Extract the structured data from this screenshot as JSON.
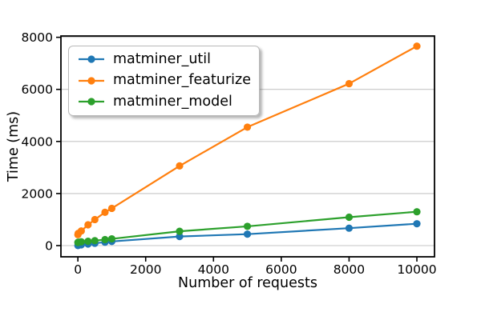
{
  "figure": {
    "background": "#ffffff"
  },
  "chart_data": {
    "type": "line",
    "title": "",
    "xlabel": "Number of requests",
    "ylabel": "Time (ms)",
    "x": [
      1,
      10,
      100,
      300,
      500,
      800,
      1000,
      3000,
      5000,
      8000,
      10000
    ],
    "series": [
      {
        "name": "matminer_util",
        "color": "#1f77b4",
        "values": [
          5,
          10,
          30,
          60,
          90,
          130,
          160,
          350,
          440,
          670,
          840
        ]
      },
      {
        "name": "matminer_featurize",
        "color": "#ff7f0e",
        "values": [
          420,
          470,
          560,
          800,
          1000,
          1280,
          1430,
          3060,
          4550,
          6220,
          7660
        ]
      },
      {
        "name": "matminer_model",
        "color": "#2ca02c",
        "values": [
          120,
          130,
          145,
          165,
          190,
          230,
          260,
          550,
          740,
          1090,
          1300
        ]
      }
    ],
    "xticks": [
      0,
      2000,
      4000,
      6000,
      8000,
      10000
    ],
    "yticks": [
      0,
      2000,
      4000,
      6000,
      8000
    ],
    "xlim": [
      -500,
      10520
    ],
    "ylim": [
      -430,
      8050
    ],
    "grid": "horizontal-only",
    "grid_color": "#c6c6c6",
    "axis_color": "#000000",
    "marker": "o",
    "legend": {
      "position": "upper-left",
      "entries": [
        "matminer_util",
        "matminer_featurize",
        "matminer_model"
      ]
    }
  }
}
